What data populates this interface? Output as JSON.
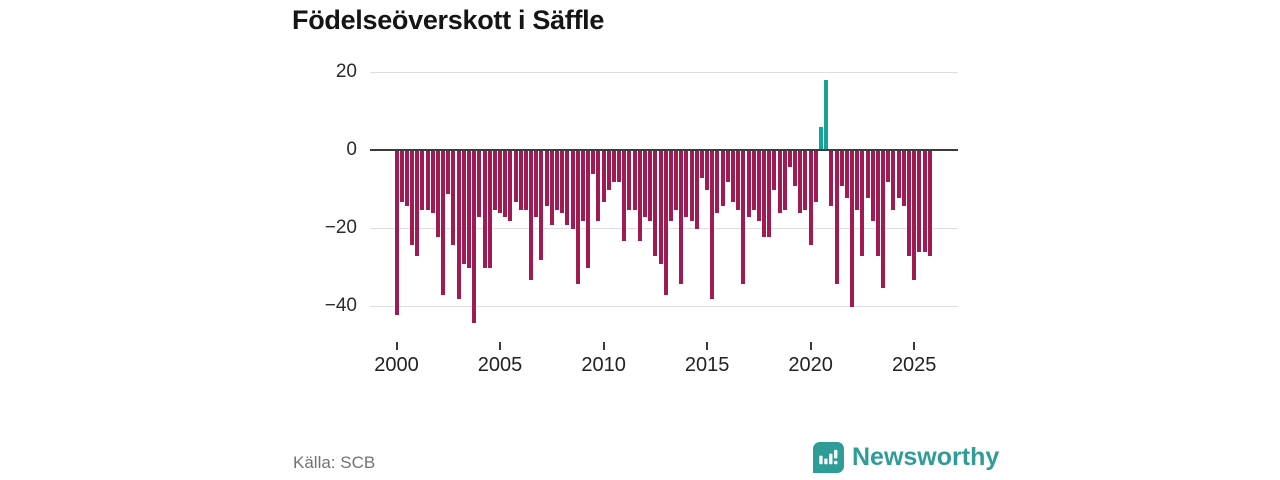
{
  "title": "Födelseöverskott i Säffle",
  "source": "Källa: SCB",
  "brand": {
    "name": "Newsworthy",
    "color": "#2f9d97"
  },
  "chart_data": {
    "type": "bar",
    "title": "Födelseöverskott i Säffle",
    "xlabel": "",
    "ylabel": "",
    "ylim": [
      -48,
      24
    ],
    "grid": true,
    "legend": false,
    "frequency": "quarterly",
    "start_year": 2000,
    "y_ticks": [
      20,
      0,
      -20,
      -40
    ],
    "y_tick_labels": [
      "20",
      "0",
      "−20",
      "−40"
    ],
    "x_ticks": [
      2000,
      2005,
      2010,
      2015,
      2020,
      2025
    ],
    "x_tick_labels": [
      "2000",
      "2005",
      "2010",
      "2015",
      "2020",
      "2025"
    ],
    "colors": {
      "negative": "#a21a52",
      "positive": "#16a39a"
    },
    "values": [
      -42,
      -13,
      -14,
      -24,
      -27,
      -15,
      -15,
      -16,
      -22,
      -37,
      -11,
      -24,
      -38,
      -29,
      -30,
      -44,
      -17,
      -30,
      -30,
      -15,
      -16,
      -17,
      -18,
      -13,
      -15,
      -15,
      -33,
      -17,
      -28,
      -14,
      -19,
      -15,
      -16,
      -19,
      -20,
      -34,
      -18,
      -30,
      -6,
      -18,
      -13,
      -10,
      -8,
      -8,
      -23,
      -15,
      -15,
      -23,
      -17,
      -18,
      -27,
      -29,
      -37,
      -18,
      -15,
      -34,
      -17,
      -18,
      -20,
      -7,
      -10,
      -38,
      -16,
      -14,
      -8,
      -13,
      -15,
      -34,
      -17,
      -15,
      -18,
      -22,
      -22,
      -10,
      -16,
      -15,
      -4,
      -9,
      -16,
      -15,
      -24,
      -13,
      6,
      18,
      -14,
      -34,
      -9,
      -12,
      -40,
      -15,
      -27,
      -12,
      -18,
      -27,
      -35,
      -8,
      -15,
      -12,
      -14,
      -27,
      -33,
      -26,
      -26,
      -27
    ]
  }
}
